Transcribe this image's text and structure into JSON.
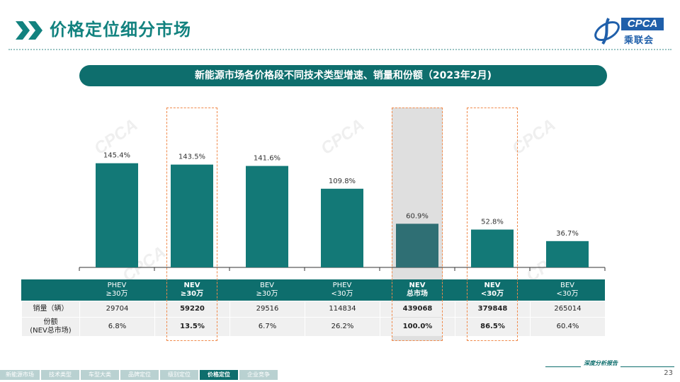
{
  "header": {
    "title": "价格定位细分市场",
    "logo_text": "CPCA",
    "logo_cn": "乘联会"
  },
  "banner": {
    "text": "新能源市场各价格段不同技术类型增速、销量和份额（2023年2月)"
  },
  "chart_data": {
    "type": "bar",
    "categories": [
      "PHEV\n≥30万",
      "NEV\n≥30万",
      "BEV\n≥30万",
      "PHEV\n<30万",
      "NEV\n总市场",
      "NEV\n<30万",
      "BEV\n<30万"
    ],
    "values": [
      145.4,
      143.5,
      141.6,
      109.8,
      60.9,
      52.8,
      36.7
    ],
    "value_labels": [
      "145.4%",
      "143.5%",
      "141.6%",
      "109.8%",
      "60.9%",
      "52.8%",
      "36.7%"
    ],
    "bar_color": "#137977",
    "highlight_bar_color": "#2f6f74",
    "highlight_dashed": [
      1,
      5
    ],
    "highlight_filled": [
      4
    ],
    "ylim": [
      0,
      200
    ]
  },
  "table": {
    "rows": [
      {
        "label": "销量（辆）",
        "cells": [
          "29704",
          "59220",
          "29516",
          "114834",
          "439068",
          "379848",
          "265014"
        ]
      },
      {
        "label": "份额\n(NEV总市场)",
        "cells": [
          "6.8%",
          "13.5%",
          "6.7%",
          "26.2%",
          "100.0%",
          "86.5%",
          "60.4%"
        ]
      }
    ],
    "bold_columns": [
      1,
      4,
      5
    ]
  },
  "footer": {
    "nav": [
      "新能源市场",
      "技术类型",
      "车型大类",
      "品牌定位",
      "级别定位",
      "价格定位",
      "企业竞争"
    ],
    "active_index": 5,
    "report_tag": "深度分析报告",
    "page_number": "23"
  },
  "colors": {
    "teal": "#0e6e6d",
    "accent_orange": "#f08a4b"
  }
}
